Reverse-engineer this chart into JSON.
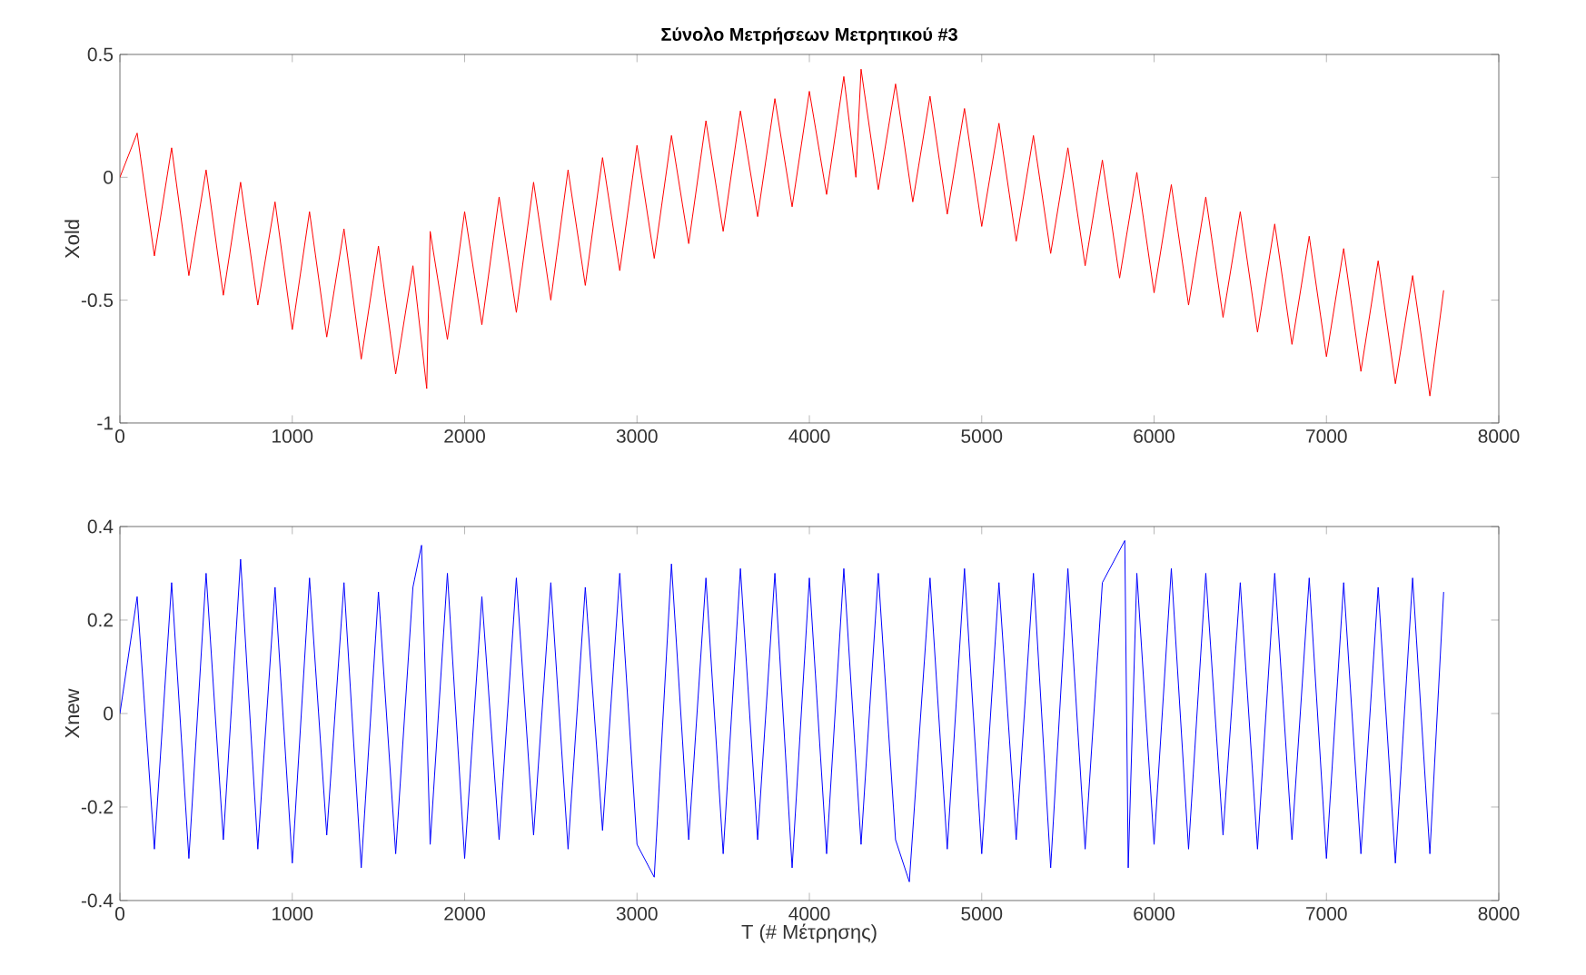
{
  "chart_data": [
    {
      "type": "line",
      "title": "Σύνολο Μετρήσεων Μετρητικού #3",
      "ylabel": "Xold",
      "xlim": [
        0,
        8000
      ],
      "xticks": [
        0,
        1000,
        2000,
        3000,
        4000,
        5000,
        6000,
        7000,
        8000
      ],
      "ylim": [
        -1,
        0.5
      ],
      "yticks": [
        -1,
        -0.5,
        0,
        0.5
      ],
      "grid": false,
      "series": [
        {
          "color": "#ff0000",
          "x": [
            0,
            100,
            200,
            300,
            400,
            500,
            600,
            700,
            800,
            900,
            1000,
            1100,
            1200,
            1300,
            1400,
            1500,
            1600,
            1700,
            1780,
            1800,
            1900,
            2000,
            2100,
            2200,
            2300,
            2400,
            2500,
            2600,
            2700,
            2800,
            2900,
            3000,
            3100,
            3200,
            3300,
            3400,
            3500,
            3600,
            3700,
            3800,
            3900,
            4000,
            4100,
            4200,
            4270,
            4300,
            4400,
            4500,
            4600,
            4700,
            4800,
            4900,
            5000,
            5100,
            5200,
            5300,
            5400,
            5500,
            5600,
            5700,
            5800,
            5900,
            6000,
            6100,
            6200,
            6300,
            6400,
            6500,
            6600,
            6700,
            6800,
            6900,
            7000,
            7100,
            7200,
            7300,
            7400,
            7500,
            7600,
            7680
          ],
          "values": [
            0.0,
            0.18,
            -0.32,
            0.12,
            -0.4,
            0.03,
            -0.48,
            -0.02,
            -0.52,
            -0.1,
            -0.62,
            -0.14,
            -0.65,
            -0.21,
            -0.74,
            -0.28,
            -0.8,
            -0.36,
            -0.86,
            -0.22,
            -0.66,
            -0.14,
            -0.6,
            -0.08,
            -0.55,
            -0.02,
            -0.5,
            0.03,
            -0.44,
            0.08,
            -0.38,
            0.13,
            -0.33,
            0.17,
            -0.27,
            0.23,
            -0.22,
            0.27,
            -0.16,
            0.32,
            -0.12,
            0.35,
            -0.07,
            0.41,
            0.0,
            0.44,
            -0.05,
            0.38,
            -0.1,
            0.33,
            -0.15,
            0.28,
            -0.2,
            0.22,
            -0.26,
            0.17,
            -0.31,
            0.12,
            -0.36,
            0.07,
            -0.41,
            0.02,
            -0.47,
            -0.03,
            -0.52,
            -0.08,
            -0.57,
            -0.14,
            -0.63,
            -0.19,
            -0.68,
            -0.24,
            -0.73,
            -0.29,
            -0.79,
            -0.34,
            -0.84,
            -0.4,
            -0.89,
            -0.46
          ]
        }
      ]
    },
    {
      "type": "line",
      "xlabel": "T (# Μέτρησης)",
      "ylabel": "Xnew",
      "xlim": [
        0,
        8000
      ],
      "xticks": [
        0,
        1000,
        2000,
        3000,
        4000,
        5000,
        6000,
        7000,
        8000
      ],
      "ylim": [
        -0.4,
        0.4
      ],
      "yticks": [
        -0.4,
        -0.2,
        0,
        0.2,
        0.4
      ],
      "grid": false,
      "series": [
        {
          "color": "#0000ff",
          "x": [
            0,
            100,
            200,
            300,
            400,
            500,
            600,
            700,
            800,
            900,
            1000,
            1100,
            1200,
            1300,
            1400,
            1500,
            1600,
            1700,
            1750,
            1800,
            1900,
            2000,
            2100,
            2200,
            2300,
            2400,
            2500,
            2600,
            2700,
            2800,
            2900,
            3000,
            3100,
            3200,
            3300,
            3400,
            3500,
            3600,
            3700,
            3800,
            3900,
            4000,
            4100,
            4200,
            4300,
            4400,
            4500,
            4580,
            4700,
            4800,
            4900,
            5000,
            5100,
            5200,
            5300,
            5400,
            5500,
            5600,
            5700,
            5830,
            5850,
            5900,
            6000,
            6100,
            6200,
            6300,
            6400,
            6500,
            6600,
            6700,
            6800,
            6900,
            7000,
            7100,
            7200,
            7300,
            7400,
            7500,
            7600,
            7680
          ],
          "values": [
            0.0,
            0.25,
            -0.29,
            0.28,
            -0.31,
            0.3,
            -0.27,
            0.33,
            -0.29,
            0.27,
            -0.32,
            0.29,
            -0.26,
            0.28,
            -0.33,
            0.26,
            -0.3,
            0.27,
            0.36,
            -0.28,
            0.3,
            -0.31,
            0.25,
            -0.27,
            0.29,
            -0.26,
            0.28,
            -0.29,
            0.27,
            -0.25,
            0.3,
            -0.28,
            -0.35,
            0.32,
            -0.27,
            0.29,
            -0.3,
            0.31,
            -0.27,
            0.3,
            -0.33,
            0.29,
            -0.3,
            0.31,
            -0.28,
            0.3,
            -0.27,
            -0.36,
            0.29,
            -0.29,
            0.31,
            -0.3,
            0.28,
            -0.27,
            0.3,
            -0.33,
            0.31,
            -0.29,
            0.28,
            0.37,
            -0.33,
            0.3,
            -0.28,
            0.31,
            -0.29,
            0.3,
            -0.26,
            0.28,
            -0.29,
            0.3,
            -0.27,
            0.29,
            -0.31,
            0.28,
            -0.3,
            0.27,
            -0.32,
            0.29,
            -0.3,
            0.26
          ]
        }
      ]
    }
  ]
}
